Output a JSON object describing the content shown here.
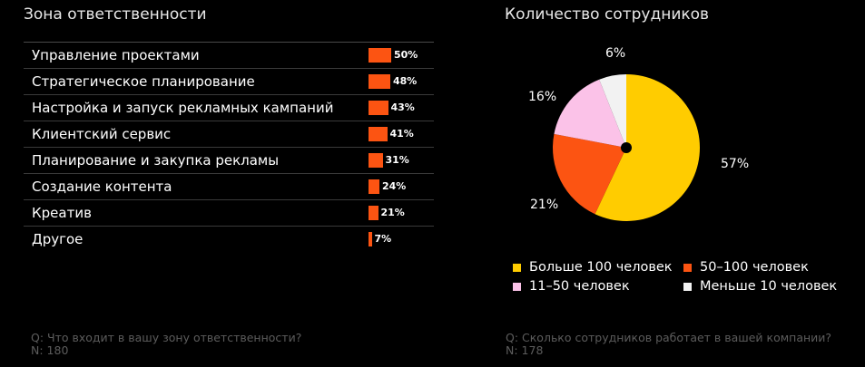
{
  "chart_data": [
    {
      "type": "bar",
      "title": "Зона ответственности",
      "categories": [
        "Управление проектами",
        "Стратегическое планирование",
        "Настройка и запуск рекламных кампаний",
        "Клиентский сервис",
        "Планирование и закупка рекламы",
        "Создание контента",
        "Креатив",
        "Другое"
      ],
      "values": [
        50,
        48,
        43,
        41,
        31,
        24,
        21,
        7
      ],
      "value_labels": [
        "50%",
        "48%",
        "43%",
        "41%",
        "31%",
        "24%",
        "21%",
        "7%"
      ],
      "unit": "%",
      "color": "#fc5412",
      "question": "Q: Что входит в вашу зону ответственности?",
      "n": "N: 180"
    },
    {
      "type": "pie",
      "title": "Количество сотрудников",
      "slices": [
        {
          "name": "Больше 100 человек",
          "value": 57,
          "label": "57%",
          "color": "#ffcc00"
        },
        {
          "name": "50–100 человек",
          "value": 21,
          "label": "21%",
          "color": "#fc5412"
        },
        {
          "name": "11–50 человек",
          "value": 16,
          "label": "16%",
          "color": "#fbc2e8"
        },
        {
          "name": "Меньше 10 человек",
          "value": 6,
          "label": "6%",
          "color": "#f2f2f2"
        }
      ],
      "legend_placement": "bottom",
      "question": "Q: Сколько сотрудников работает в вашей компании?",
      "n": "N: 178"
    }
  ]
}
